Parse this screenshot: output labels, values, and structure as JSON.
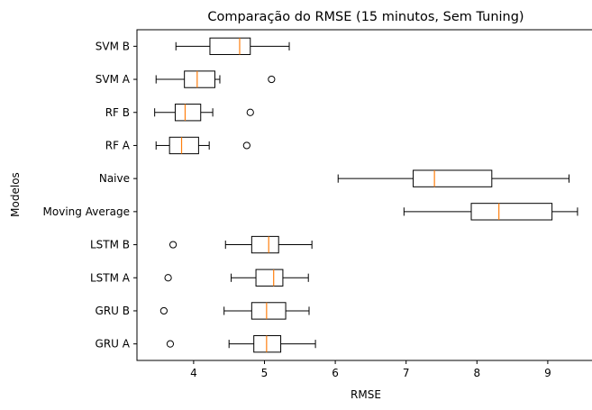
{
  "chart_data": {
    "type": "boxplot",
    "orientation": "horizontal",
    "title": "Comparação do RMSE (15 minutos, Sem Tuning)",
    "xlabel": "RMSE",
    "ylabel": "Modelos",
    "xlim": [
      3.2,
      9.65
    ],
    "xticks": [
      4,
      5,
      6,
      7,
      8,
      9
    ],
    "grid": false,
    "legend": "none",
    "colors": {
      "box": "#000000",
      "median": "#ff7f0e",
      "flier": "#000000"
    },
    "categories": [
      "SVM B",
      "SVM A",
      "RF B",
      "RF A",
      "Naive",
      "Moving Average",
      "LSTM B",
      "LSTM A",
      "GRU B",
      "GRU A"
    ],
    "boxes": [
      {
        "label": "SVM B",
        "whislo": 3.75,
        "q1": 4.23,
        "med": 4.65,
        "q3": 4.8,
        "whishi": 5.35,
        "fliers": []
      },
      {
        "label": "SVM A",
        "whislo": 3.47,
        "q1": 3.87,
        "med": 4.05,
        "q3": 4.3,
        "whishi": 4.37,
        "fliers": [
          5.1
        ]
      },
      {
        "label": "RF B",
        "whislo": 3.45,
        "q1": 3.74,
        "med": 3.88,
        "q3": 4.1,
        "whishi": 4.27,
        "fliers": [
          4.8
        ]
      },
      {
        "label": "RF A",
        "whislo": 3.47,
        "q1": 3.66,
        "med": 3.83,
        "q3": 4.07,
        "whishi": 4.22,
        "fliers": [
          4.75
        ]
      },
      {
        "label": "Naive",
        "whislo": 6.04,
        "q1": 7.1,
        "med": 7.4,
        "q3": 8.21,
        "whishi": 9.3,
        "fliers": []
      },
      {
        "label": "Moving Average",
        "whislo": 6.97,
        "q1": 7.92,
        "med": 8.31,
        "q3": 9.06,
        "whishi": 9.42,
        "fliers": []
      },
      {
        "label": "LSTM B",
        "whislo": 4.45,
        "q1": 4.82,
        "med": 5.06,
        "q3": 5.2,
        "whishi": 5.67,
        "fliers": [
          3.71
        ]
      },
      {
        "label": "LSTM A",
        "whislo": 4.53,
        "q1": 4.88,
        "med": 5.13,
        "q3": 5.26,
        "whishi": 5.62,
        "fliers": [
          3.64
        ]
      },
      {
        "label": "GRU B",
        "whislo": 4.43,
        "q1": 4.82,
        "med": 5.03,
        "q3": 5.3,
        "whishi": 5.63,
        "fliers": [
          3.58
        ]
      },
      {
        "label": "GRU A",
        "whislo": 4.5,
        "q1": 4.85,
        "med": 5.03,
        "q3": 5.23,
        "whishi": 5.72,
        "fliers": [
          3.67
        ]
      }
    ]
  }
}
